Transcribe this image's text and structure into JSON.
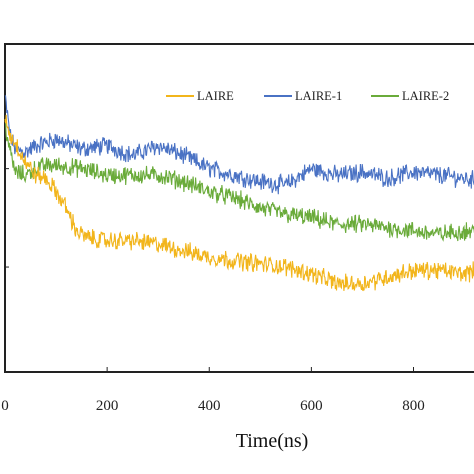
{
  "chart_data": {
    "type": "line",
    "xlabel": "Time(ns)",
    "xlim": [
      0,
      940
    ],
    "ylim": [
      0,
      1
    ],
    "x_ticks": [
      0,
      200,
      400,
      600,
      800
    ],
    "x_tick_labels": [
      "0",
      "200",
      "400",
      "600",
      "800"
    ],
    "legend_position": "top-right",
    "grid": false,
    "series": [
      {
        "name": "LAIRE",
        "color": "#f2b51b",
        "points": [
          [
            0,
            0.78
          ],
          [
            10,
            0.72
          ],
          [
            20,
            0.7
          ],
          [
            40,
            0.64
          ],
          [
            60,
            0.6
          ],
          [
            80,
            0.59
          ],
          [
            100,
            0.55
          ],
          [
            120,
            0.5
          ],
          [
            140,
            0.43
          ],
          [
            160,
            0.41
          ],
          [
            200,
            0.4
          ],
          [
            250,
            0.4
          ],
          [
            300,
            0.39
          ],
          [
            350,
            0.37
          ],
          [
            400,
            0.35
          ],
          [
            450,
            0.34
          ],
          [
            500,
            0.33
          ],
          [
            550,
            0.32
          ],
          [
            600,
            0.3
          ],
          [
            650,
            0.27
          ],
          [
            700,
            0.27
          ],
          [
            750,
            0.29
          ],
          [
            800,
            0.31
          ],
          [
            850,
            0.31
          ],
          [
            900,
            0.3
          ],
          [
            940,
            0.32
          ]
        ]
      },
      {
        "name": "LAIRE-1",
        "color": "#4a72c4",
        "points": [
          [
            0,
            0.84
          ],
          [
            10,
            0.72
          ],
          [
            20,
            0.68
          ],
          [
            40,
            0.67
          ],
          [
            60,
            0.69
          ],
          [
            80,
            0.7
          ],
          [
            100,
            0.71
          ],
          [
            150,
            0.68
          ],
          [
            200,
            0.69
          ],
          [
            250,
            0.66
          ],
          [
            300,
            0.69
          ],
          [
            350,
            0.66
          ],
          [
            400,
            0.62
          ],
          [
            450,
            0.6
          ],
          [
            500,
            0.58
          ],
          [
            550,
            0.57
          ],
          [
            600,
            0.62
          ],
          [
            650,
            0.6
          ],
          [
            700,
            0.61
          ],
          [
            750,
            0.59
          ],
          [
            800,
            0.61
          ],
          [
            850,
            0.6
          ],
          [
            900,
            0.59
          ],
          [
            940,
            0.58
          ]
        ]
      },
      {
        "name": "LAIRE-2",
        "color": "#6aab3a",
        "points": [
          [
            0,
            0.76
          ],
          [
            10,
            0.67
          ],
          [
            20,
            0.61
          ],
          [
            40,
            0.6
          ],
          [
            60,
            0.62
          ],
          [
            80,
            0.63
          ],
          [
            100,
            0.63
          ],
          [
            150,
            0.62
          ],
          [
            200,
            0.6
          ],
          [
            250,
            0.6
          ],
          [
            300,
            0.6
          ],
          [
            350,
            0.58
          ],
          [
            400,
            0.55
          ],
          [
            450,
            0.53
          ],
          [
            500,
            0.5
          ],
          [
            550,
            0.48
          ],
          [
            600,
            0.47
          ],
          [
            650,
            0.45
          ],
          [
            700,
            0.45
          ],
          [
            750,
            0.44
          ],
          [
            800,
            0.43
          ],
          [
            850,
            0.42
          ],
          [
            900,
            0.43
          ],
          [
            940,
            0.43
          ]
        ]
      }
    ]
  }
}
